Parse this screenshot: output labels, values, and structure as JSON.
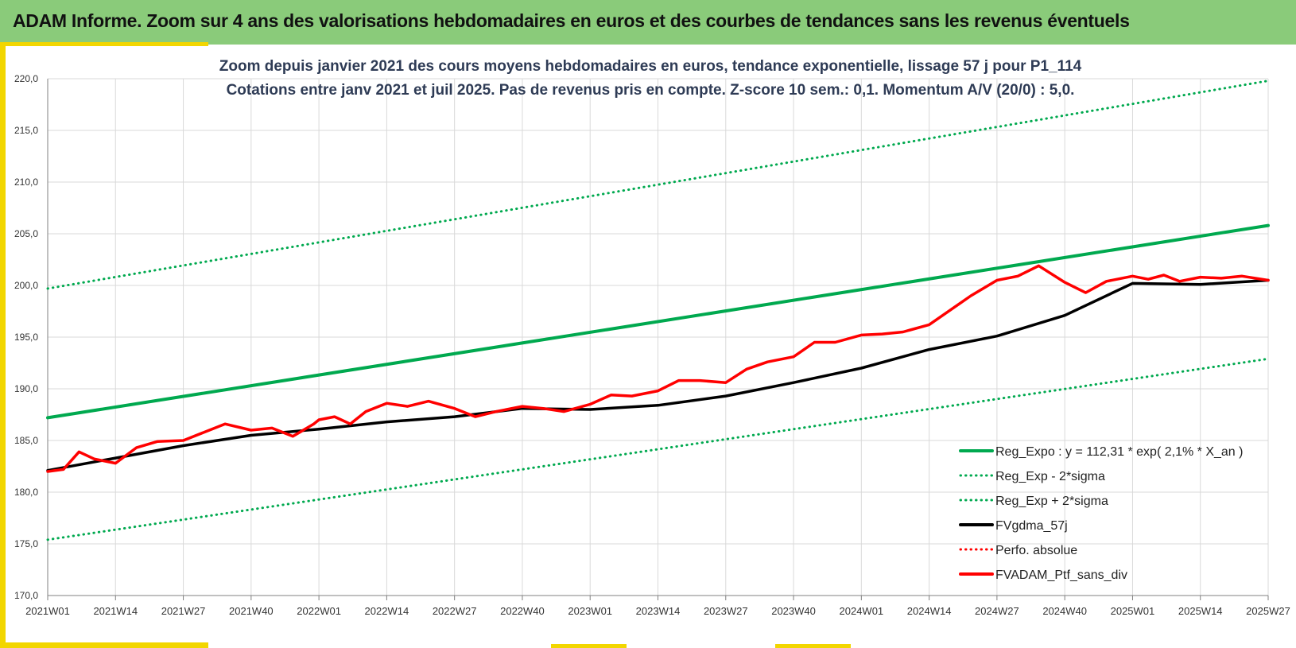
{
  "header": {
    "title": "ADAM Informe. Zoom sur 4 ans des valorisations hebdomadaires en euros et des courbes de tendances sans les revenus éventuels"
  },
  "colors": {
    "header_bg": "#8acb7a",
    "accent": "#f2d600",
    "reg_expo": "#00a94f",
    "fvgdma": "#000000",
    "fvadam": "#ff0000",
    "perfo": "#c00000"
  },
  "chart_data": {
    "type": "line",
    "title_line1": "Zoom depuis janvier 2021 des cours moyens hebdomadaires  en euros, tendance exponentielle, lissage 57 j  pour  P1_114",
    "title_line2": "Cotations  entre janv 2021 et juil 2025. Pas de revenus pris en compte. Z-score 10 sem.: 0,1. Momentum A/V (20/0) : 5,0.",
    "ylim": [
      170,
      220
    ],
    "yticks": [
      "170,0",
      "175,0",
      "180,0",
      "185,0",
      "190,0",
      "195,0",
      "200,0",
      "205,0",
      "210,0",
      "215,0",
      "220,0"
    ],
    "xticks": [
      "2021W01",
      "2021W14",
      "2021W27",
      "2021W40",
      "2022W01",
      "2022W14",
      "2022W27",
      "2022W40",
      "2023W01",
      "2023W14",
      "2023W27",
      "2023W40",
      "2024W01",
      "2024W14",
      "2024W27",
      "2024W40",
      "2025W01",
      "2025W14",
      "2025W27"
    ],
    "grid": true,
    "legend_position": "bottom-right",
    "legend": [
      {
        "label": "Reg_Expo : y = 112,31 * exp( 2,1% *  X_an )",
        "color": "#00a94f",
        "style": "solid"
      },
      {
        "label": "Reg_Exp - 2*sigma",
        "color": "#00a94f",
        "style": "dotted"
      },
      {
        "label": "Reg_Exp + 2*sigma",
        "color": "#00a94f",
        "style": "dotted"
      },
      {
        "label": "FVgdma_57j",
        "color": "#000000",
        "style": "solid"
      },
      {
        "label": "Perfo. absolue",
        "color": "#ff0000",
        "style": "dotted"
      },
      {
        "label": "FVADAM_Ptf_sans_div",
        "color": "#ff0000",
        "style": "solid"
      }
    ],
    "series": [
      {
        "name": "Reg_Expo : y = 112,31 * exp( 2,1% *  X_an )",
        "x": [
          "2021W01",
          "2025W27"
        ],
        "y": [
          187.2,
          205.8
        ]
      },
      {
        "name": "Reg_Exp - 2*sigma",
        "x": [
          "2021W01",
          "2025W27"
        ],
        "y": [
          175.4,
          192.9
        ]
      },
      {
        "name": "Reg_Exp + 2*sigma",
        "x": [
          "2021W01",
          "2025W27"
        ],
        "y": [
          199.7,
          219.8
        ]
      },
      {
        "name": "FVgdma_57j",
        "x": [
          "2021W01",
          "2021W14",
          "2021W27",
          "2021W40",
          "2022W01",
          "2022W14",
          "2022W27",
          "2022W40",
          "2023W01",
          "2023W14",
          "2023W27",
          "2023W40",
          "2024W01",
          "2024W14",
          "2024W27",
          "2024W40",
          "2025W01",
          "2025W14",
          "2025W27"
        ],
        "y": [
          182.1,
          183.3,
          184.5,
          185.5,
          186.1,
          186.8,
          187.3,
          188.1,
          188.0,
          188.4,
          189.3,
          190.6,
          192.0,
          193.8,
          195.1,
          197.1,
          200.2,
          200.1,
          200.5
        ]
      },
      {
        "name": "FVADAM_Ptf_sans_div",
        "x": [
          "2021W01",
          "2021W04",
          "2021W07",
          "2021W10",
          "2021W14",
          "2021W18",
          "2021W22",
          "2021W27",
          "2021W31",
          "2021W35",
          "2021W40",
          "2021W44",
          "2021W48",
          "2021W52",
          "2022W01",
          "2022W04",
          "2022W07",
          "2022W10",
          "2022W14",
          "2022W18",
          "2022W22",
          "2022W27",
          "2022W31",
          "2022W35",
          "2022W40",
          "2022W44",
          "2022W48",
          "2023W01",
          "2023W05",
          "2023W09",
          "2023W14",
          "2023W18",
          "2023W22",
          "2023W27",
          "2023W31",
          "2023W35",
          "2023W40",
          "2023W44",
          "2023W48",
          "2024W01",
          "2024W05",
          "2024W09",
          "2024W14",
          "2024W18",
          "2024W22",
          "2024W27",
          "2024W31",
          "2024W35",
          "2024W40",
          "2024W44",
          "2024W48",
          "2025W01",
          "2025W04",
          "2025W07",
          "2025W10",
          "2025W14",
          "2025W18",
          "2025W22",
          "2025W27"
        ],
        "y": [
          182.0,
          182.2,
          183.9,
          183.2,
          182.8,
          184.3,
          184.9,
          185.0,
          185.8,
          186.6,
          186.0,
          186.2,
          185.4,
          186.6,
          187.0,
          187.3,
          186.6,
          187.8,
          188.6,
          188.3,
          188.8,
          188.1,
          187.3,
          187.8,
          188.3,
          188.1,
          187.8,
          188.5,
          189.4,
          189.3,
          189.8,
          190.8,
          190.8,
          190.6,
          191.9,
          192.6,
          193.1,
          194.5,
          194.5,
          195.2,
          195.3,
          195.5,
          196.2,
          197.6,
          199.0,
          200.5,
          200.9,
          201.9,
          200.3,
          199.3,
          200.4,
          200.9,
          200.6,
          201.0,
          200.4,
          200.8,
          200.7,
          200.9,
          200.5
        ]
      }
    ]
  }
}
